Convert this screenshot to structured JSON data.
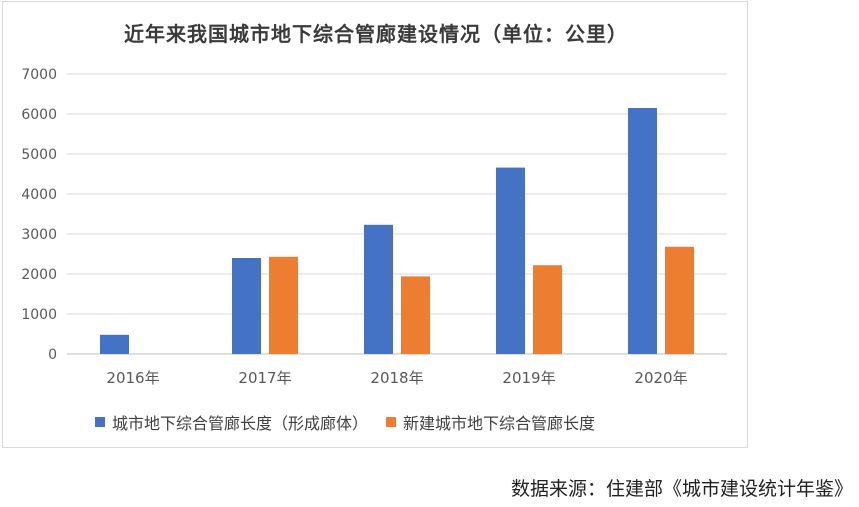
{
  "chart_data": {
    "type": "bar",
    "title": "近年来我国城市地下综合管廊建设情况（单位：公里）",
    "categories": [
      "2016年",
      "2017年",
      "2018年",
      "2019年",
      "2020年"
    ],
    "series": [
      {
        "name": "城市地下综合管廊长度（形成廊体）",
        "values": [
          480,
          2400,
          3230,
          4660,
          6150
        ],
        "color": "#4472c4"
      },
      {
        "name": "新建城市地下综合管廊长度",
        "values": [
          null,
          2430,
          1940,
          2220,
          2680
        ],
        "color": "#ed7d31"
      }
    ],
    "ylim": [
      0,
      7000
    ],
    "yticks": [
      "0",
      "1000",
      "2000",
      "3000",
      "4000",
      "5000",
      "6000",
      "7000"
    ],
    "grid": true,
    "legend_position": "bottom"
  },
  "source_note": "数据来源：住建部《城市建设统计年鉴》"
}
